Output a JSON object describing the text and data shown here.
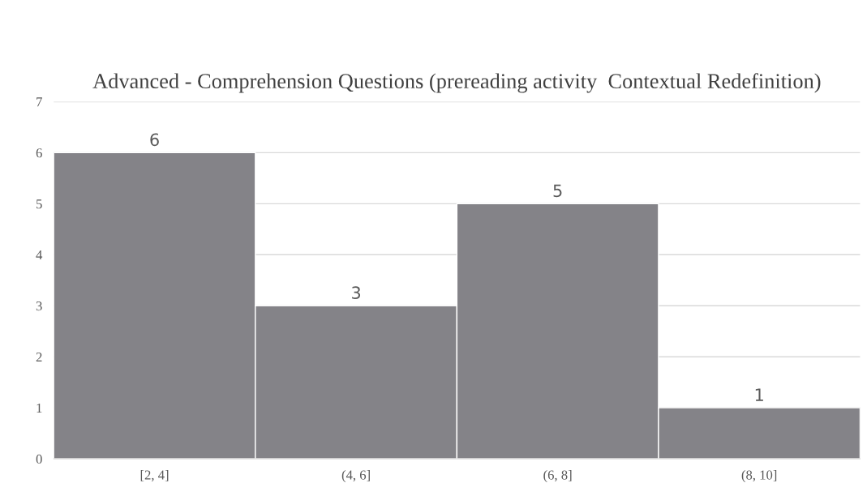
{
  "chart_data": {
    "type": "bar",
    "title": "Advanced - Comprehension Questions (prereading activity  Contextual Redefinition)",
    "categories": [
      "[2, 4]",
      "(4, 6]",
      "(6, 8]",
      "(8, 10]"
    ],
    "values": [
      6,
      3,
      5,
      1
    ],
    "color": "#848388",
    "ylim": [
      0,
      7
    ],
    "yticks": [
      0,
      1,
      2,
      3,
      4,
      5,
      6,
      7
    ],
    "grid": "y",
    "data_labels": true
  }
}
